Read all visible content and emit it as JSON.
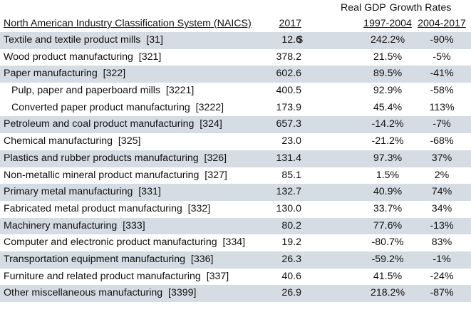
{
  "header": {
    "real_gdp": "Real GDP",
    "growth_rates": "Growth Rates",
    "col_name": "North American Industry Classification System (NAICS)",
    "col_gdp": "2017",
    "col_g1": "1997-2004",
    "col_g2": "2004-2017"
  },
  "currency_symbol": "$",
  "shade_color": "#d6dce4",
  "rows": [
    {
      "name": "Textile and textile product mills  [31]",
      "gdp": "12.6",
      "g1": "242.2%",
      "g2": "-90%"
    },
    {
      "name": "Wood product manufacturing  [321]",
      "gdp": "378.2",
      "g1": "21.5%",
      "g2": "-5%"
    },
    {
      "name": "Paper manufacturing  [322]",
      "gdp": "602.6",
      "g1": "89.5%",
      "g2": "-41%"
    },
    {
      "name": "Pulp, paper and paperboard mills  [3221]",
      "gdp": "400.5",
      "g1": "92.9%",
      "g2": "-58%"
    },
    {
      "name": "Converted paper product manufacturing  [3222]",
      "gdp": "173.9",
      "g1": "45.4%",
      "g2": "113%"
    },
    {
      "name": "Petroleum and coal product manufacturing  [324]",
      "gdp": "657.3",
      "g1": "-14.2%",
      "g2": "-7%"
    },
    {
      "name": "Chemical manufacturing  [325]",
      "gdp": "23.0",
      "g1": "-21.2%",
      "g2": "-68%"
    },
    {
      "name": "Plastics and rubber products manufacturing  [326]",
      "gdp": "131.4",
      "g1": "97.3%",
      "g2": "37%"
    },
    {
      "name": "Non-metallic mineral product manufacturing  [327]",
      "gdp": "85.1",
      "g1": "1.5%",
      "g2": "2%"
    },
    {
      "name": "Primary metal manufacturing  [331]",
      "gdp": "132.7",
      "g1": "40.9%",
      "g2": "74%"
    },
    {
      "name": "Fabricated metal product manufacturing  [332]",
      "gdp": "130.0",
      "g1": "33.7%",
      "g2": "34%"
    },
    {
      "name": "Machinery manufacturing  [333]",
      "gdp": "80.2",
      "g1": "77.6%",
      "g2": "-13%"
    },
    {
      "name": "Computer and electronic product manufacturing  [334]",
      "gdp": "19.2",
      "g1": "-80.7%",
      "g2": "83%"
    },
    {
      "name": "Transportation equipment manufacturing  [336]",
      "gdp": "26.3",
      "g1": "-59.2%",
      "g2": "-1%"
    },
    {
      "name": "Furniture and related product manufacturing  [337]",
      "gdp": "40.6",
      "g1": "41.5%",
      "g2": "-24%"
    },
    {
      "name": "Other miscellaneous manufacturing  [3399]",
      "gdp": "26.9",
      "g1": "218.2%",
      "g2": "-87%"
    }
  ]
}
